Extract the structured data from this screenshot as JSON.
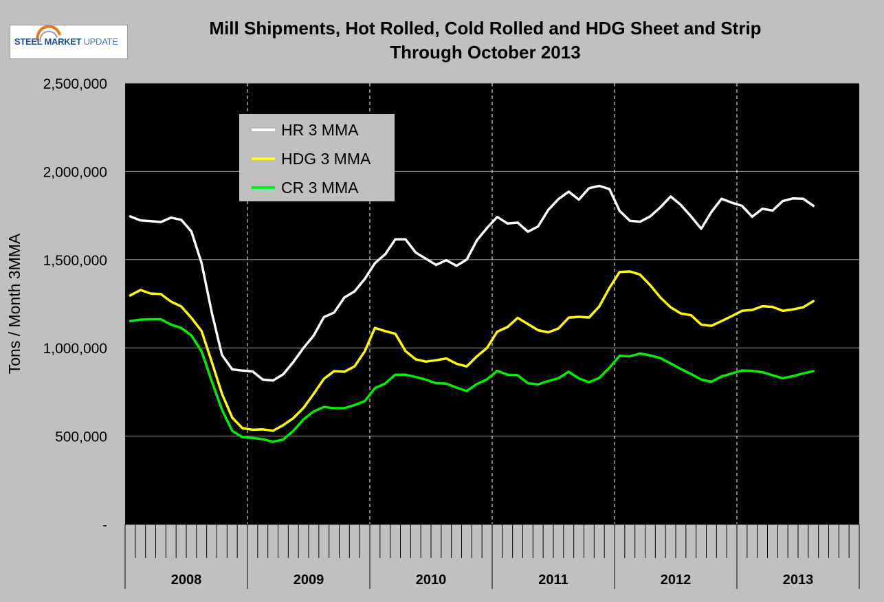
{
  "logo": {
    "brand_bold": "STEEL MARKET",
    "brand_light": "UPDATE"
  },
  "colors": {
    "background": "#c0c0c0",
    "plot_area": "#000000",
    "hr": "#ffffff",
    "hdg": "#ffff00",
    "cr": "#00ee00"
  },
  "chart_data": {
    "type": "line",
    "title_lines": [
      "Mill Shipments, Hot Rolled, Cold Rolled and HDG Sheet and Strip",
      "Through October 2013"
    ],
    "xlabel": "",
    "ylabel": "Tons / Month 3MMA",
    "ylim": [
      0,
      2500000
    ],
    "yticks": [
      0,
      500000,
      1000000,
      1500000,
      2000000,
      2500000
    ],
    "ytick_labels": [
      "-",
      "500,000",
      "1,000,000",
      "1,500,000",
      "2,000,000",
      "2,500,000"
    ],
    "years": [
      "2008",
      "2009",
      "2010",
      "2011",
      "2012",
      "2013"
    ],
    "months_per_year": 12,
    "x_start": "2008-01",
    "x_end": "2013-12",
    "grid": true,
    "legend_position": "top-left",
    "series": [
      {
        "name": "HR 3 MMA",
        "color": "#ffffff",
        "values": [
          1745000,
          1722000,
          1718000,
          1713000,
          1738000,
          1726000,
          1660000,
          1480000,
          1200000,
          960000,
          878000,
          871000,
          867000,
          820000,
          815000,
          850000,
          920000,
          1000000,
          1070000,
          1175000,
          1200000,
          1285000,
          1320000,
          1390000,
          1480000,
          1530000,
          1615000,
          1615000,
          1540000,
          1505000,
          1470000,
          1497000,
          1465000,
          1500000,
          1610000,
          1680000,
          1742000,
          1705000,
          1710000,
          1658000,
          1688000,
          1782000,
          1843000,
          1885000,
          1840000,
          1905000,
          1918000,
          1900000,
          1776000,
          1720000,
          1715000,
          1745000,
          1797000,
          1858000,
          1810000,
          1745000,
          1675000,
          1770000,
          1845000,
          1823000,
          1805000,
          1743000,
          1788000,
          1778000,
          1832000,
          1847000,
          1845000,
          1805000
        ]
      },
      {
        "name": "HDG 3 MMA",
        "color": "#ffff00",
        "values": [
          1297000,
          1328000,
          1308000,
          1305000,
          1262000,
          1235000,
          1170000,
          1095000,
          920000,
          740000,
          605000,
          545000,
          536000,
          538000,
          530000,
          562000,
          602000,
          660000,
          740000,
          825000,
          868000,
          865000,
          895000,
          980000,
          1113000,
          1095000,
          1080000,
          982000,
          935000,
          922000,
          930000,
          940000,
          910000,
          895000,
          952000,
          1000000,
          1092000,
          1118000,
          1170000,
          1135000,
          1100000,
          1088000,
          1110000,
          1171000,
          1176000,
          1172000,
          1235000,
          1340000,
          1430000,
          1433000,
          1415000,
          1355000,
          1285000,
          1230000,
          1195000,
          1185000,
          1132000,
          1125000,
          1152000,
          1180000,
          1210000,
          1215000,
          1236000,
          1232000,
          1210000,
          1218000,
          1230000,
          1265000
        ]
      },
      {
        "name": "CR 3 MMA",
        "color": "#00ee00",
        "values": [
          1152000,
          1160000,
          1162000,
          1162000,
          1132000,
          1113000,
          1070000,
          980000,
          810000,
          650000,
          530000,
          494000,
          490000,
          482000,
          468000,
          480000,
          530000,
          595000,
          640000,
          665000,
          658000,
          658000,
          676000,
          698000,
          772000,
          798000,
          848000,
          848000,
          835000,
          820000,
          800000,
          797000,
          775000,
          755000,
          795000,
          822000,
          870000,
          848000,
          845000,
          800000,
          793000,
          812000,
          828000,
          865000,
          827000,
          805000,
          830000,
          888000,
          955000,
          952000,
          968000,
          957000,
          942000,
          912000,
          880000,
          852000,
          820000,
          808000,
          838000,
          855000,
          872000,
          870000,
          862000,
          845000,
          828000,
          840000,
          855000,
          868000
        ]
      }
    ]
  }
}
